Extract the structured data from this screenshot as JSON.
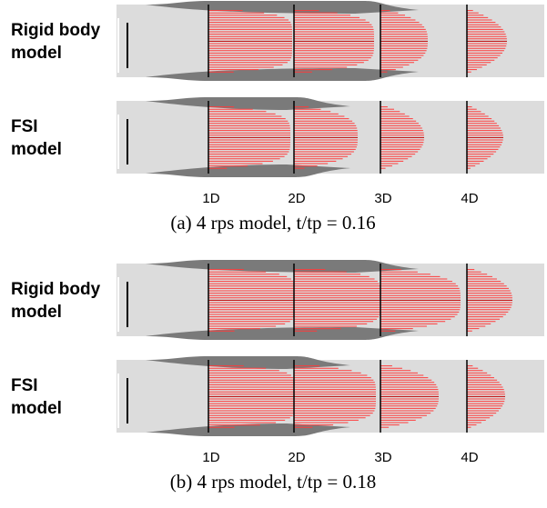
{
  "panels": [
    {
      "rows": [
        {
          "label": [
            "Rigid body",
            "model"
          ]
        },
        {
          "label": [
            "FSI",
            "model"
          ]
        }
      ],
      "stations": [
        "1D",
        "2D",
        "3D",
        "4D"
      ],
      "caption": "(a) 4 rps model, t/tp = 0.16"
    },
    {
      "rows": [
        {
          "label": [
            "Rigid body",
            "model"
          ]
        },
        {
          "label": [
            "FSI",
            "model"
          ]
        }
      ],
      "stations": [
        "1D",
        "2D",
        "3D",
        "4D"
      ],
      "caption": "(b) 4 rps model, t/tp = 0.18"
    }
  ]
}
